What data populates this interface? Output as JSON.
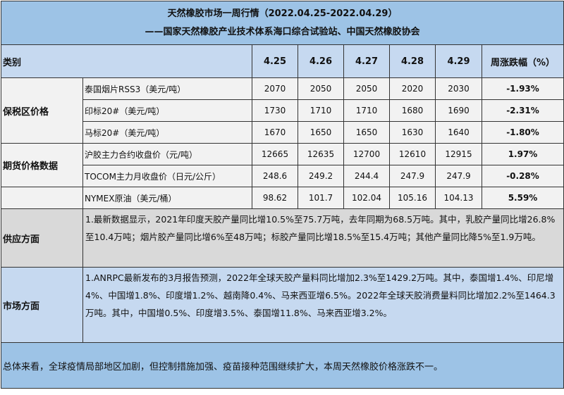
{
  "title": "天然橡胶市场一周行情（2022.04.25-2022.04.29）",
  "subtitle": "——国家天然橡胶产业技术体系海口综合试验站、中国天然橡胶协会",
  "header": {
    "category": "类别",
    "dates": [
      "4.25",
      "4.26",
      "4.27",
      "4.28",
      "4.29"
    ],
    "change": "周涨跌幅（%）"
  },
  "groups": {
    "bonded": "保税区价格",
    "futures": "期货价格数据"
  },
  "rows": [
    {
      "name": "泰国烟片RSS3（美元/吨）",
      "values": [
        "2070",
        "2050",
        "2050",
        "2020",
        "2030"
      ],
      "change": "-1.93%"
    },
    {
      "name": "印标20#（美元/吨）",
      "values": [
        "1730",
        "1710",
        "1710",
        "1680",
        "1690"
      ],
      "change": "-2.31%"
    },
    {
      "name": "马标20#（美元/吨）",
      "values": [
        "1670",
        "1650",
        "1650",
        "1630",
        "1640"
      ],
      "change": "-1.80%"
    },
    {
      "name": "沪胶主力合约收盘价（元/吨）",
      "values": [
        "12665",
        "12635",
        "12700",
        "12610",
        "12915"
      ],
      "change": "1.97%"
    },
    {
      "name": "TOCOM主力月收盘价（日元/公斤）",
      "values": [
        "248.6",
        "249.2",
        "244.4",
        "247.9",
        "247.9"
      ],
      "change": "-0.28%"
    },
    {
      "name": "NYMEX原油（美元/桶）",
      "values": [
        "98.62",
        "101.7",
        "102.04",
        "105.16",
        "104.13"
      ],
      "change": "5.59%"
    }
  ],
  "supply": {
    "label": "供应方面",
    "text": "1.最新数据显示，2021年印度天胶产量同比增10.5%至75.7万吨，去年同期为68.5万吨。其中，乳胶产量同比增26.8%至10.4万吨；烟片胶产量同比增6%至48万吨；标胶产量同比增18.5%至15.4万吨；其他产量同比降5%至1.9万吨。"
  },
  "market": {
    "label": "市场方面",
    "text": "1.ANRPC最新发布的3月报告预测，2022年全球天胶产量料同比增加2.3%至1429.2万吨。其中，泰国增1.4%、印尼增4%、中国增1.8%、印度增1.2%、越南降0.4%、马来西亚增6.5%。2022年全球天胶消费量料同比增加2.2%至1464.3万吨。其中，中国增0.5%、印度增3.5%、泰国增11.8%、马来西亚增3.2%。"
  },
  "summary": "总体来看，全球疫情局部地区加剧，但控制措施加强、疫苗接种范围继续扩大，本周天然橡胶价格涨跌不一。",
  "colors": {
    "title_bg": "#9dc3e6",
    "header_bg": "#c6d9f0",
    "supply_bg": "#d9d9d9",
    "row_bg": "#f2f2f2"
  }
}
